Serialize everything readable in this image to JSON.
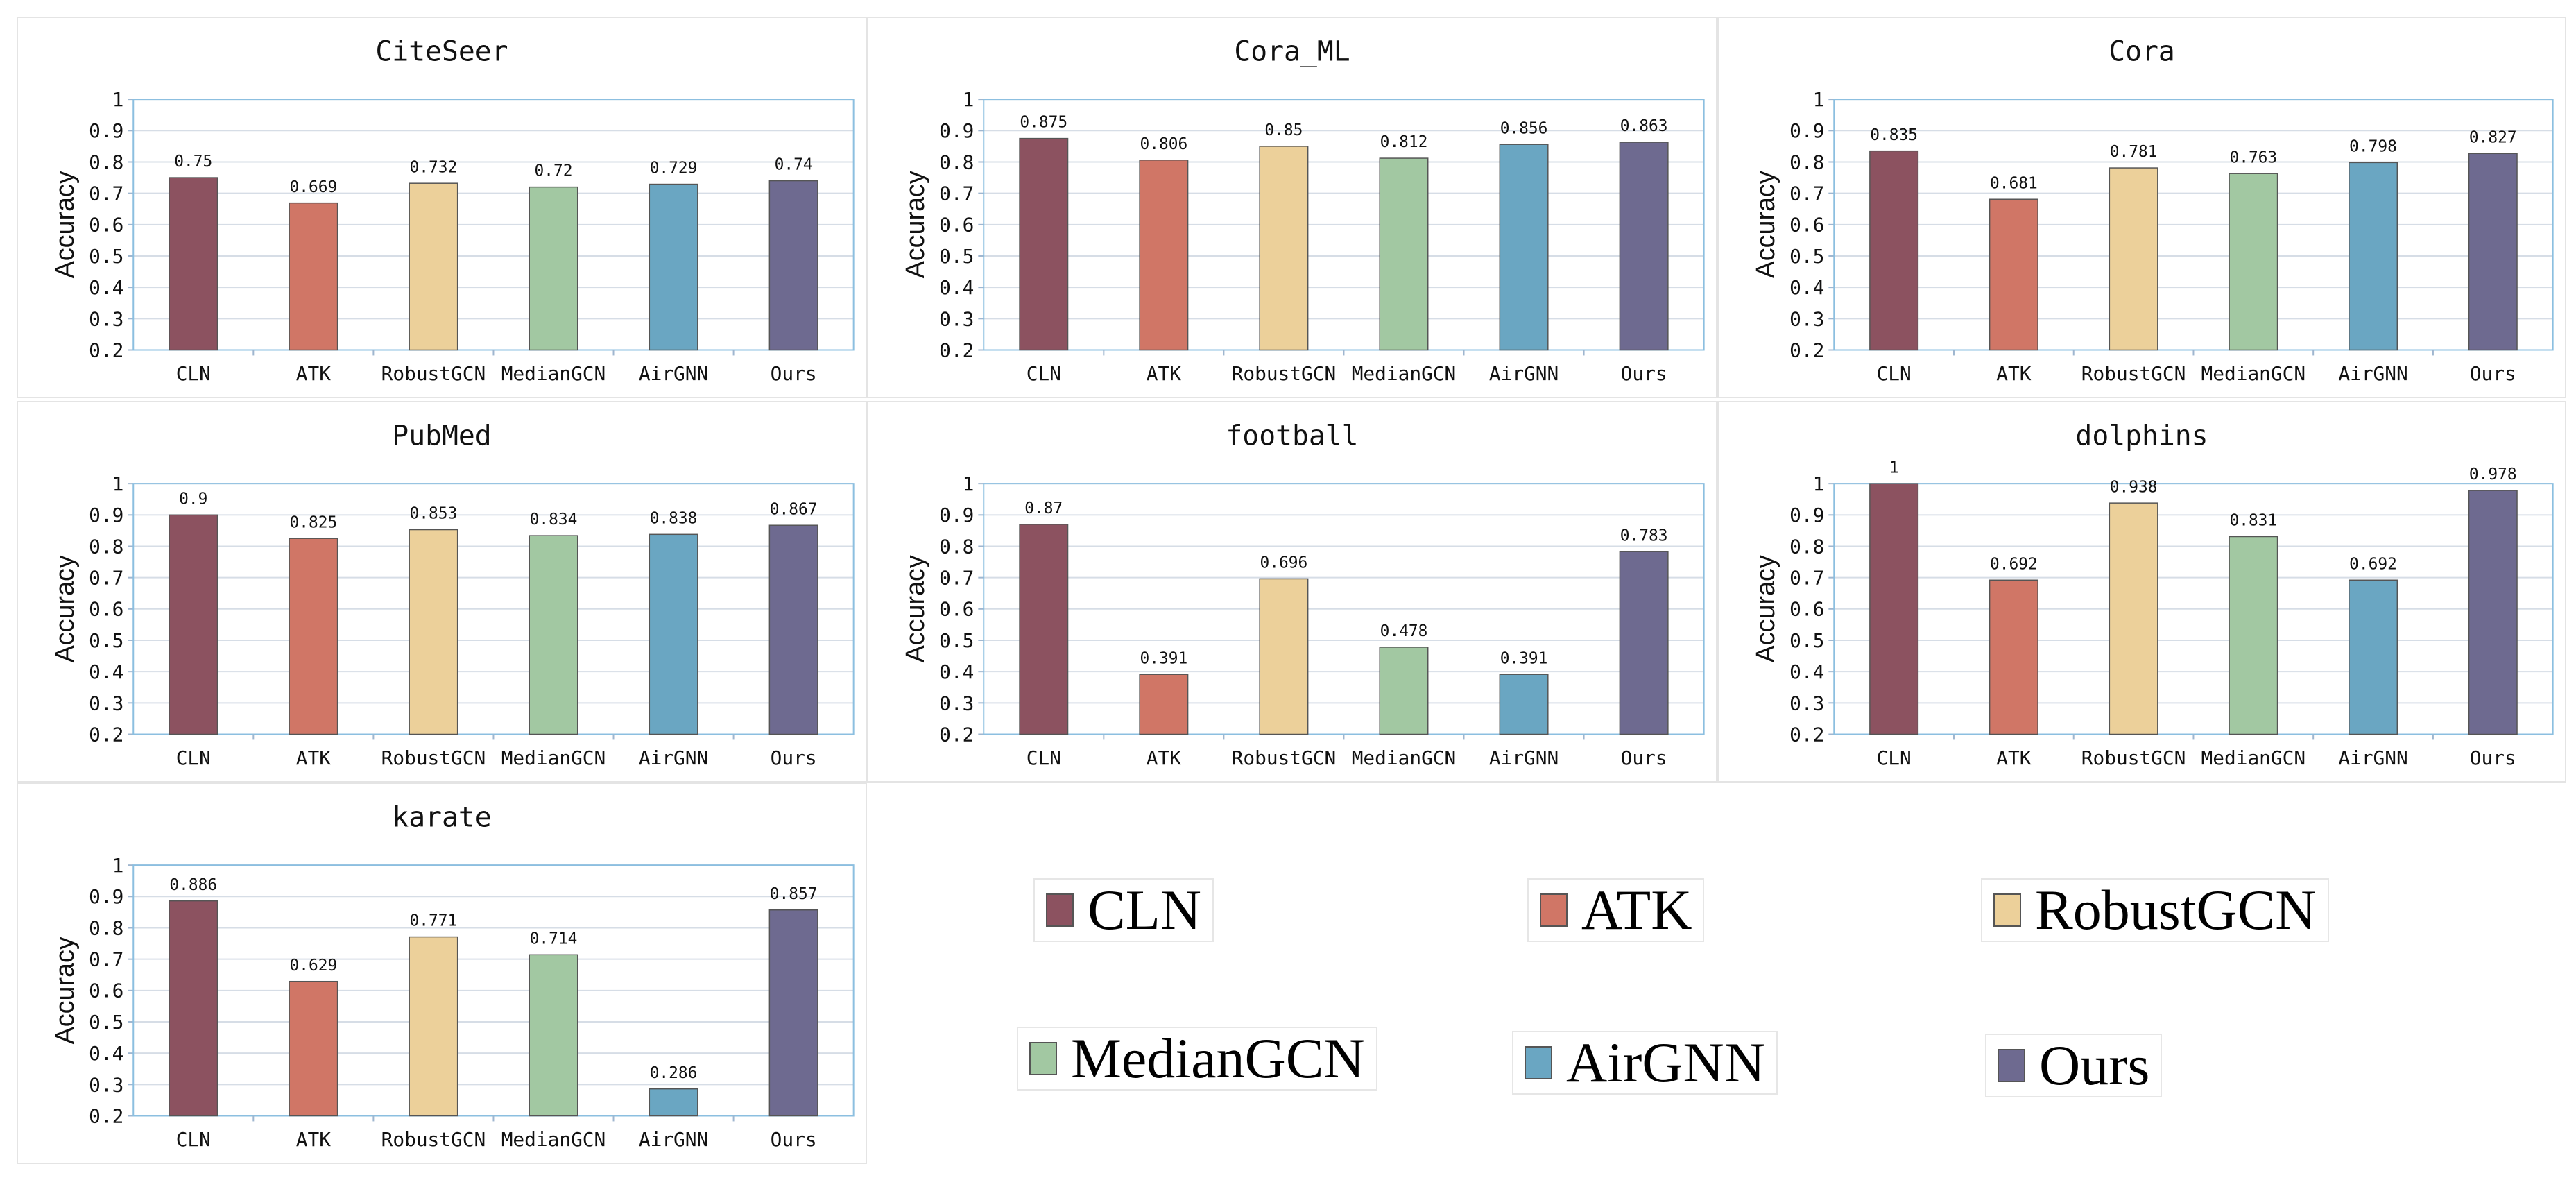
{
  "colors": {
    "CLN": "#8c5260",
    "ATK": "#d07666",
    "RobustGCN": "#ecd09a",
    "MedianGCN": "#a2c8a2",
    "AirGNN": "#6aa6c2",
    "Ours": "#6e6a90"
  },
  "legend": {
    "items": [
      {
        "label": "CLN",
        "color": "#8c5260"
      },
      {
        "label": "ATK",
        "color": "#d07666"
      },
      {
        "label": "RobustGCN",
        "color": "#ecd09a"
      },
      {
        "label": "MedianGCN",
        "color": "#a2c8a2"
      },
      {
        "label": "AirGNN",
        "color": "#6aa6c2"
      },
      {
        "label": "Ours",
        "color": "#6e6a90"
      }
    ]
  },
  "chart_data": [
    {
      "type": "bar",
      "title": "CiteSeer",
      "ylabel": "Accuracy",
      "xlabel": "",
      "categories": [
        "CLN",
        "ATK",
        "RobustGCN",
        "MedianGCN",
        "AirGNN",
        "Ours"
      ],
      "values": [
        0.75,
        0.669,
        0.732,
        0.72,
        0.729,
        0.74
      ],
      "value_labels": [
        "0.75",
        "0.669",
        "0.732",
        "0.72",
        "0.729",
        "0.74"
      ],
      "ylim": [
        0.2,
        1
      ],
      "yticks": [
        "0.2",
        "0.3",
        "0.4",
        "0.5",
        "0.6",
        "0.7",
        "0.8",
        "0.9",
        "1"
      ]
    },
    {
      "type": "bar",
      "title": "Cora_ML",
      "ylabel": "Accuracy",
      "xlabel": "",
      "categories": [
        "CLN",
        "ATK",
        "RobustGCN",
        "MedianGCN",
        "AirGNN",
        "Ours"
      ],
      "values": [
        0.875,
        0.806,
        0.85,
        0.812,
        0.856,
        0.863
      ],
      "value_labels": [
        "0.875",
        "0.806",
        "0.85",
        "0.812",
        "0.856",
        "0.863"
      ],
      "ylim": [
        0.2,
        1
      ],
      "yticks": [
        "0.2",
        "0.3",
        "0.4",
        "0.5",
        "0.6",
        "0.7",
        "0.8",
        "0.9",
        "1"
      ]
    },
    {
      "type": "bar",
      "title": "Cora",
      "ylabel": "Accuracy",
      "xlabel": "",
      "categories": [
        "CLN",
        "ATK",
        "RobustGCN",
        "MedianGCN",
        "AirGNN",
        "Ours"
      ],
      "values": [
        0.835,
        0.681,
        0.781,
        0.763,
        0.798,
        0.827
      ],
      "value_labels": [
        "0.835",
        "0.681",
        "0.781",
        "0.763",
        "0.798",
        "0.827"
      ],
      "ylim": [
        0.2,
        1
      ],
      "yticks": [
        "0.2",
        "0.3",
        "0.4",
        "0.5",
        "0.6",
        "0.7",
        "0.8",
        "0.9",
        "1"
      ]
    },
    {
      "type": "bar",
      "title": "PubMed",
      "ylabel": "Accuracy",
      "xlabel": "",
      "categories": [
        "CLN",
        "ATK",
        "RobustGCN",
        "MedianGCN",
        "AirGNN",
        "Ours"
      ],
      "values": [
        0.9,
        0.825,
        0.853,
        0.834,
        0.838,
        0.867
      ],
      "value_labels": [
        "0.9",
        "0.825",
        "0.853",
        "0.834",
        "0.838",
        "0.867"
      ],
      "ylim": [
        0.2,
        1
      ],
      "yticks": [
        "0.2",
        "0.3",
        "0.4",
        "0.5",
        "0.6",
        "0.7",
        "0.8",
        "0.9",
        "1"
      ]
    },
    {
      "type": "bar",
      "title": "football",
      "ylabel": "Accuracy",
      "xlabel": "",
      "categories": [
        "CLN",
        "ATK",
        "RobustGCN",
        "MedianGCN",
        "AirGNN",
        "Ours"
      ],
      "values": [
        0.87,
        0.391,
        0.696,
        0.478,
        0.391,
        0.783
      ],
      "value_labels": [
        "0.87",
        "0.391",
        "0.696",
        "0.478",
        "0.391",
        "0.783"
      ],
      "ylim": [
        0.2,
        1
      ],
      "yticks": [
        "0.2",
        "0.3",
        "0.4",
        "0.5",
        "0.6",
        "0.7",
        "0.8",
        "0.9",
        "1"
      ]
    },
    {
      "type": "bar",
      "title": "dolphins",
      "ylabel": "Accuracy",
      "xlabel": "",
      "categories": [
        "CLN",
        "ATK",
        "RobustGCN",
        "MedianGCN",
        "AirGNN",
        "Ours"
      ],
      "values": [
        1,
        0.692,
        0.938,
        0.831,
        0.692,
        0.978
      ],
      "value_labels": [
        "1",
        "0.692",
        "0.938",
        "0.831",
        "0.692",
        "0.978"
      ],
      "ylim": [
        0.2,
        1
      ],
      "yticks": [
        "0.2",
        "0.3",
        "0.4",
        "0.5",
        "0.6",
        "0.7",
        "0.8",
        "0.9",
        "1"
      ]
    },
    {
      "type": "bar",
      "title": "karate",
      "ylabel": "Accuracy",
      "xlabel": "",
      "categories": [
        "CLN",
        "ATK",
        "RobustGCN",
        "MedianGCN",
        "AirGNN",
        "Ours"
      ],
      "values": [
        0.886,
        0.629,
        0.771,
        0.714,
        0.286,
        0.857
      ],
      "value_labels": [
        "0.886",
        "0.629",
        "0.771",
        "0.714",
        "0.286",
        "0.857"
      ],
      "ylim": [
        0.2,
        1
      ],
      "yticks": [
        "0.2",
        "0.3",
        "0.4",
        "0.5",
        "0.6",
        "0.7",
        "0.8",
        "0.9",
        "1"
      ]
    }
  ]
}
